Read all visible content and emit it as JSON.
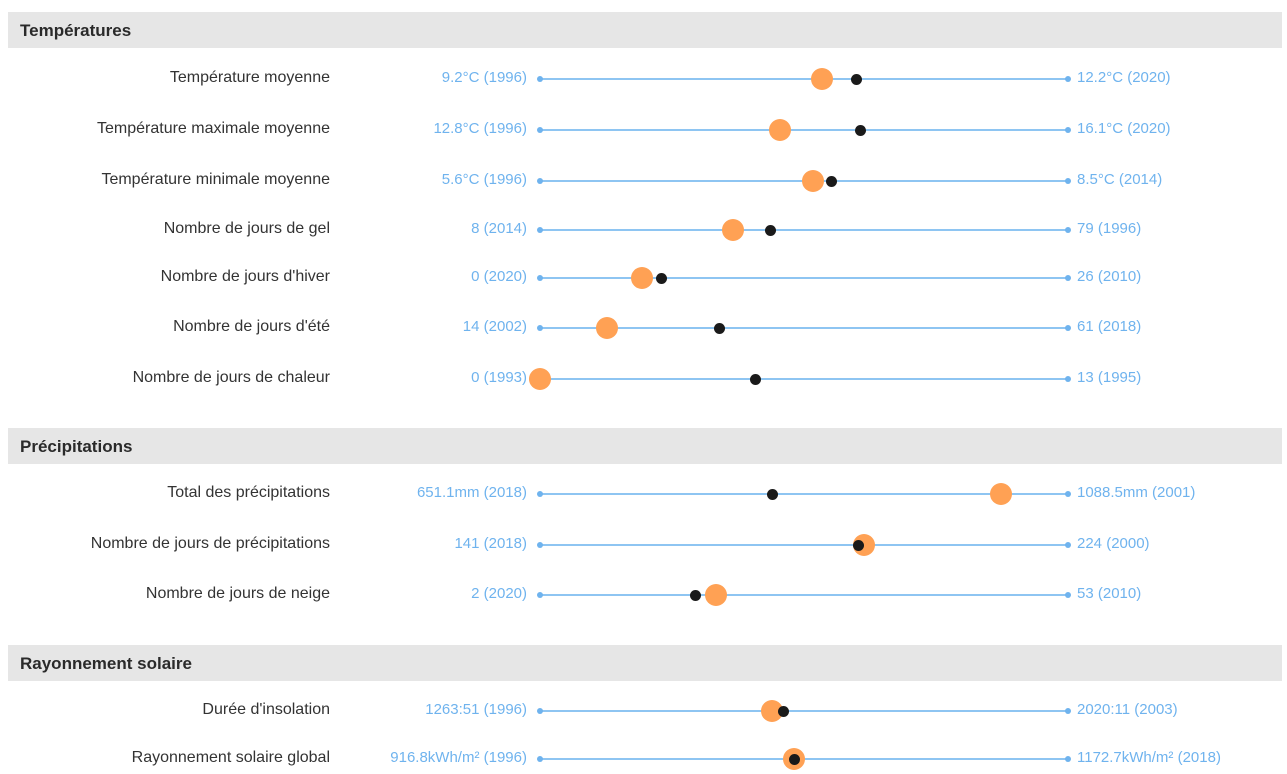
{
  "colors": {
    "track": "#8ec5f2",
    "range_text": "#6fb3ee",
    "current_marker": "#ffa154",
    "mean_marker": "#1a1a1a",
    "section_bg": "#e6e6e6"
  },
  "sections": [
    {
      "title": "Températures"
    },
    {
      "title": "Précipitations"
    },
    {
      "title": "Rayonnement solaire"
    }
  ],
  "chart_data": {
    "type": "dot-range",
    "rows": [
      {
        "section": 0,
        "label": "Température moyenne",
        "min_label": "9.2°C (1996)",
        "max_label": "12.2°C (2020)",
        "min": 9.2,
        "max": 12.2,
        "current": 10.8,
        "mean": 11.0
      },
      {
        "section": 0,
        "label": "Température maximale moyenne",
        "min_label": "12.8°C (1996)",
        "max_label": "16.1°C (2020)",
        "min": 12.8,
        "max": 16.1,
        "current": 14.3,
        "mean": 14.8
      },
      {
        "section": 0,
        "label": "Température minimale moyenne",
        "min_label": "5.6°C (1996)",
        "max_label": "8.5°C (2014)",
        "min": 5.6,
        "max": 8.5,
        "current": 7.1,
        "mean": 7.2
      },
      {
        "section": 0,
        "label": "Nombre de jours de gel",
        "min_label": "8 (2014)",
        "max_label": "79 (1996)",
        "min": 8,
        "max": 79,
        "current": 34,
        "mean": 39
      },
      {
        "section": 0,
        "label": "Nombre de jours d'hiver",
        "min_label": "0 (2020)",
        "max_label": "26 (2010)",
        "min": 0,
        "max": 26,
        "current": 5,
        "mean": 6
      },
      {
        "section": 0,
        "label": "Nombre de jours d'été",
        "min_label": "14 (2002)",
        "max_label": "61 (2018)",
        "min": 14,
        "max": 61,
        "current": 20,
        "mean": 30
      },
      {
        "section": 0,
        "label": "Nombre de jours de chaleur",
        "min_label": "0 (1993)",
        "max_label": "13 (1995)",
        "min": 0,
        "max": 13,
        "current": 0,
        "mean": 5.3
      },
      {
        "section": 1,
        "label": "Total des précipitations",
        "min_label": "651.1mm (2018)",
        "max_label": "1088.5mm (2001)",
        "min": 651.1,
        "max": 1088.5,
        "current": 1033,
        "mean": 844
      },
      {
        "section": 1,
        "label": "Nombre de jours de précipitations",
        "min_label": "141 (2018)",
        "max_label": "224 (2000)",
        "min": 141,
        "max": 224,
        "current": 192,
        "mean": 191
      },
      {
        "section": 1,
        "label": "Nombre de jours de neige",
        "min_label": "2 (2020)",
        "max_label": "53 (2010)",
        "min": 2,
        "max": 53,
        "current": 19,
        "mean": 17
      },
      {
        "section": 2,
        "label": "Durée d'insolation",
        "min_label": "1263:51 (1996)",
        "max_label": "2020:11 (2003)",
        "min": 1263.85,
        "max": 2020.18,
        "current": 1596,
        "mean": 1612
      },
      {
        "section": 2,
        "label": "Rayonnement solaire global",
        "min_label": "916.8kWh/m² (1996)",
        "max_label": "1172.7kWh/m² (2018)",
        "min": 916.8,
        "max": 1172.7,
        "current": 1040,
        "mean": 1040
      }
    ]
  }
}
